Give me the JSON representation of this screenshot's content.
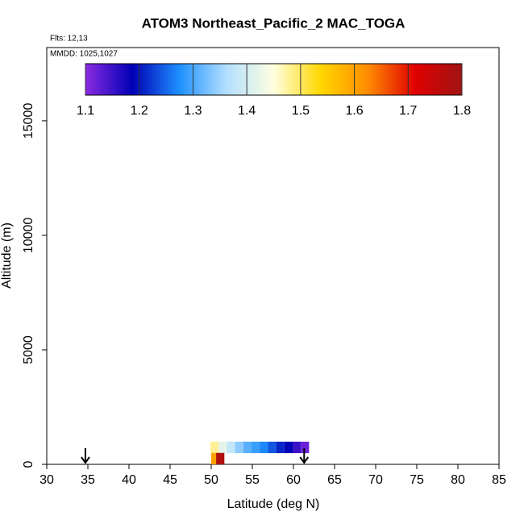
{
  "chart_data": {
    "type": "curtain",
    "title": "ATOM3 Northeast_Pacific_2 MAC_TOGA",
    "flights_label": "Flts: 12,13",
    "dates_label": "MMDD: 1025,1027",
    "x_label": "Latitude (deg N)",
    "y_label": "Altitude (m)",
    "xlim": [
      30,
      85
    ],
    "xticks": [
      30,
      35,
      40,
      45,
      50,
      55,
      60,
      65,
      70,
      75,
      80,
      85
    ],
    "ylim": [
      0,
      18200
    ],
    "yticks": [
      0,
      5000,
      10000,
      15000
    ],
    "colorbar": {
      "lim": [
        1.1,
        1.8
      ],
      "ticks": [
        1.1,
        1.2,
        1.3,
        1.4,
        1.5,
        1.6,
        1.7,
        1.8
      ],
      "colors": [
        "#8a2be2",
        "#0000b4",
        "#1e90ff",
        "#b4e0ff",
        "#ffffe0",
        "#ffd700",
        "#ff8c00",
        "#e00000",
        "#a01414"
      ]
    },
    "cell_width": 1,
    "cell_height": 500,
    "cells": {
      "lat": [
        49.9,
        50.9,
        51.9,
        52.9,
        53.9,
        54.9,
        55.9,
        56.9,
        57.9,
        58.9,
        59.9,
        60.9,
        50.0,
        50.6
      ],
      "alt": [
        740,
        740,
        740,
        740,
        740,
        740,
        740,
        740,
        740,
        740,
        740,
        740,
        250,
        250
      ],
      "values": [
        1.48,
        1.42,
        1.38,
        1.34,
        1.31,
        1.29,
        1.27,
        1.24,
        1.21,
        1.19,
        1.15,
        1.12,
        1.6,
        1.78
      ]
    },
    "arrow_lats": [
      34.7,
      61.3
    ]
  }
}
